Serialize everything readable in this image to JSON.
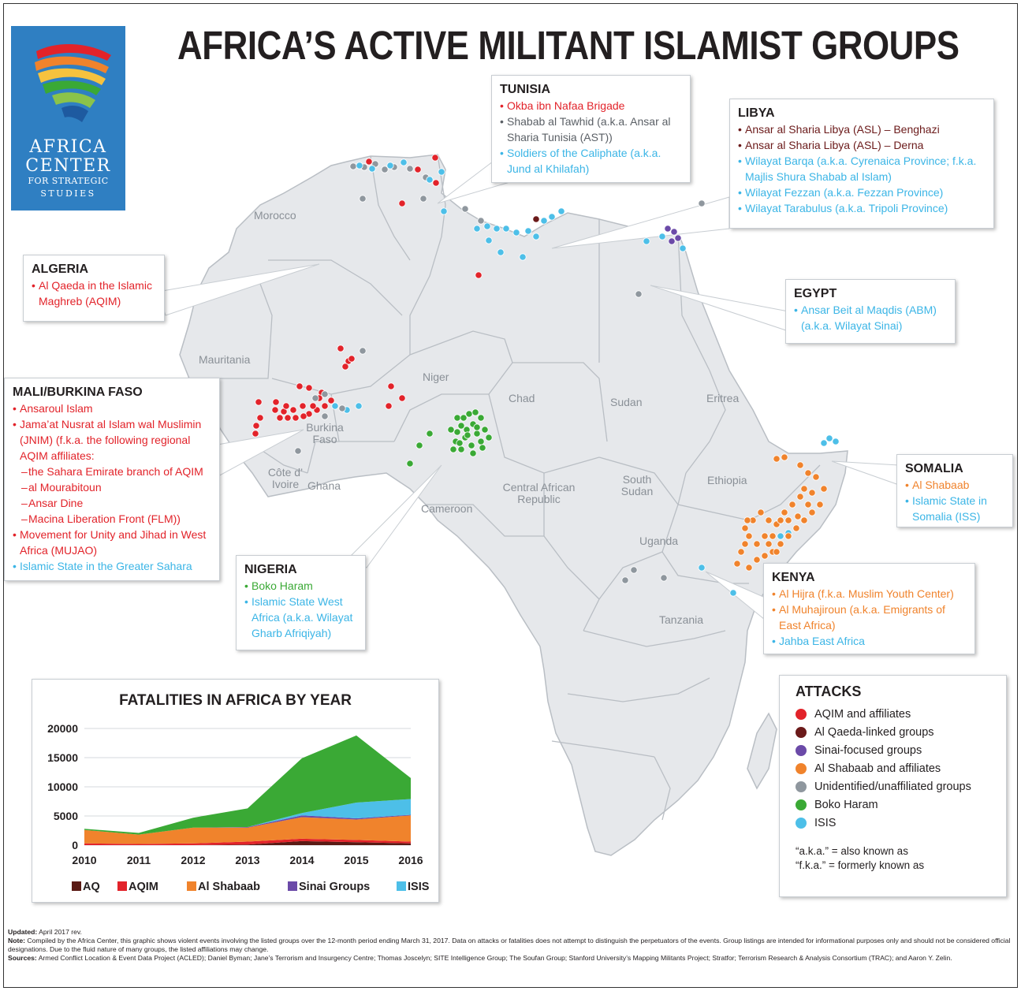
{
  "title": "AFRICA’S ACTIVE MILITANT ISLAMIST GROUPS",
  "logo": {
    "line1": "AFRICA",
    "line2": "CENTER",
    "line3": "FOR STRATEGIC",
    "line4": "STUDIES"
  },
  "colors": {
    "aqim": "#e2232a",
    "aq": "#6b1a1a",
    "sinai": "#6b4aa8",
    "shabaab": "#f0832c",
    "unidentified": "#8f979e",
    "boko": "#3aa935",
    "isis": "#4dbfe8",
    "land": "#e6e8eb",
    "border": "#b9bec4"
  },
  "countries": [
    {
      "name": "Morocco"
    },
    {
      "name": "Mauritania"
    },
    {
      "name": "Niger"
    },
    {
      "name": "Chad"
    },
    {
      "name": "Sudan"
    },
    {
      "name": "Eritrea"
    },
    {
      "name": "Burkina Faso"
    },
    {
      "name": "Côte d’ Ivoire"
    },
    {
      "name": "Ghana"
    },
    {
      "name": "Cameroon"
    },
    {
      "name": "Central African Republic"
    },
    {
      "name": "South Sudan"
    },
    {
      "name": "Ethiopia"
    },
    {
      "name": "Uganda"
    },
    {
      "name": "Tanzania"
    }
  ],
  "boxes": {
    "tunisia": {
      "title": "TUNISIA",
      "items": [
        {
          "text": "Okba ibn Nafaa Brigade",
          "c": "red"
        },
        {
          "text": "Shabab al Tawhid (a.k.a. Ansar al Sharia Tunisia (AST))",
          "c": "gray"
        },
        {
          "text": "Soldiers of the Caliphate (a.k.a. Jund al Khilafah)",
          "c": "blue"
        }
      ]
    },
    "libya": {
      "title": "LIBYA",
      "items": [
        {
          "text": "Ansar al Sharia Libya (ASL) – Benghazi",
          "c": "dark"
        },
        {
          "text": "Ansar al Sharia Libya (ASL) – Derna",
          "c": "dark"
        },
        {
          "text": "Wilayat Barqa (a.k.a. Cyrenaica Province; f.k.a. Majlis Shura Shabab al Islam)",
          "c": "blue"
        },
        {
          "text": "Wilayat Fezzan (a.k.a. Fezzan Province)",
          "c": "blue"
        },
        {
          "text": "Wilayat Tarabulus (a.k.a. Tripoli Province)",
          "c": "blue"
        }
      ]
    },
    "algeria": {
      "title": "ALGERIA",
      "items": [
        {
          "text": "Al Qaeda in the Islamic Maghreb (AQIM)",
          "c": "red"
        }
      ]
    },
    "egypt": {
      "title": "EGYPT",
      "items": [
        {
          "text": "Ansar Beit al Maqdis (ABM) (a.k.a. Wilayat Sinai)",
          "c": "blue"
        }
      ]
    },
    "mali": {
      "title": "MALI/BURKINA FASO",
      "items": [
        {
          "text": "Ansaroul Islam",
          "c": "red"
        },
        {
          "text": "Jama’at Nusrat al Islam wal Muslimin (JNIM) (f.k.a. the following regional AQIM affiliates:",
          "c": "red"
        },
        {
          "text": "the Sahara Emirate branch of AQIM",
          "c": "red",
          "sub": true
        },
        {
          "text": "al Mourabitoun",
          "c": "red",
          "sub": true
        },
        {
          "text": "Ansar Dine",
          "c": "red",
          "sub": true
        },
        {
          "text": "Macina Liberation Front (FLM))",
          "c": "red",
          "sub": true
        },
        {
          "text": "Movement for Unity and Jihad in West Africa (MUJAO)",
          "c": "red"
        },
        {
          "text": "Islamic State in the Greater Sahara",
          "c": "blue"
        }
      ]
    },
    "somalia": {
      "title": "SOMALIA",
      "items": [
        {
          "text": "Al Shabaab",
          "c": "org"
        },
        {
          "text": "Islamic State in Somalia (ISS)",
          "c": "blue"
        }
      ]
    },
    "nigeria": {
      "title": "NIGERIA",
      "items": [
        {
          "text": "Boko Haram",
          "c": "grn"
        },
        {
          "text": "Islamic State West Africa (a.k.a. Wilayat Gharb Afriqiyah)",
          "c": "blue"
        }
      ]
    },
    "kenya": {
      "title": "KENYA",
      "items": [
        {
          "text": "Al Hijra (f.k.a. Muslim Youth Center)",
          "c": "org"
        },
        {
          "text": "Al Muhajiroun (a.k.a. Emigrants of East Africa)",
          "c": "org"
        },
        {
          "text": "Jahba East Africa",
          "c": "blue"
        }
      ]
    }
  },
  "attacks": {
    "title": "ATTACKS",
    "items": [
      {
        "label": "AQIM and affiliates",
        "color": "#e2232a"
      },
      {
        "label": "Al Qaeda-linked groups",
        "color": "#6b1a1a"
      },
      {
        "label": "Sinai-focused groups",
        "color": "#6b4aa8"
      },
      {
        "label": "Al Shabaab and affiliates",
        "color": "#f0832c"
      },
      {
        "label": "Unidentified/unaffiliated groups",
        "color": "#8f979e"
      },
      {
        "label": "Boko Haram",
        "color": "#3aa935"
      },
      {
        "label": "ISIS",
        "color": "#4dbfe8"
      }
    ],
    "note1": "“a.k.a.” = also known as",
    "note2": "“f.k.a.” = formerly known as"
  },
  "chart_data": {
    "type": "area",
    "title": "FATALITIES IN AFRICA BY YEAR",
    "x": [
      2010,
      2011,
      2012,
      2013,
      2014,
      2015,
      2016
    ],
    "ylim": [
      0,
      20000
    ],
    "yticks": [
      0,
      5000,
      10000,
      15000,
      20000
    ],
    "stacked": true,
    "series": [
      {
        "name": "AQ",
        "color": "#5a1a14",
        "values": [
          0,
          0,
          0,
          100,
          700,
          500,
          300
        ]
      },
      {
        "name": "AQIM",
        "color": "#e2232a",
        "values": [
          300,
          200,
          300,
          500,
          400,
          400,
          300
        ]
      },
      {
        "name": "Al Shabaab",
        "color": "#f0832c",
        "values": [
          2300,
          1600,
          2700,
          2400,
          3700,
          3500,
          4500
        ]
      },
      {
        "name": "Sinai Groups",
        "color": "#6b4aa8",
        "values": [
          0,
          0,
          0,
          100,
          300,
          200,
          100
        ]
      },
      {
        "name": "ISIS",
        "color": "#4dbfe8",
        "values": [
          0,
          0,
          0,
          0,
          400,
          2700,
          2700
        ]
      },
      {
        "name": "BH",
        "color": "#3aa935",
        "values": [
          200,
          300,
          1700,
          3200,
          9400,
          11500,
          3600
        ]
      }
    ]
  },
  "footer": {
    "updated_label": "Updated:",
    "updated": " April 2017 rev.",
    "note_label": "Note:",
    "note": " Compiled by the Africa Center, this graphic shows violent events involving the listed groups over the 12-month period ending March 31, 2017. Data on attacks or fatalities does not attempt to distinguish the perpetuators of the events. Group listings are intended for informational purposes only and should not be considered official designations. Due to the fluid nature of many groups, the listed affiliations may change.",
    "sources_label": "Sources:",
    "sources": " Armed Conflict Location & Event Data Project (ACLED); Daniel Byman; Jane’s Terrorism and Insurgency Centre; Thomas Joscelyn; SITE Intelligence Group; The Soufan Group; Stanford University’s Mapping Militants Project; Stratfor; Terrorism Research & Analysis Consortium (TRAC); and Aaron Y. Zelin."
  }
}
